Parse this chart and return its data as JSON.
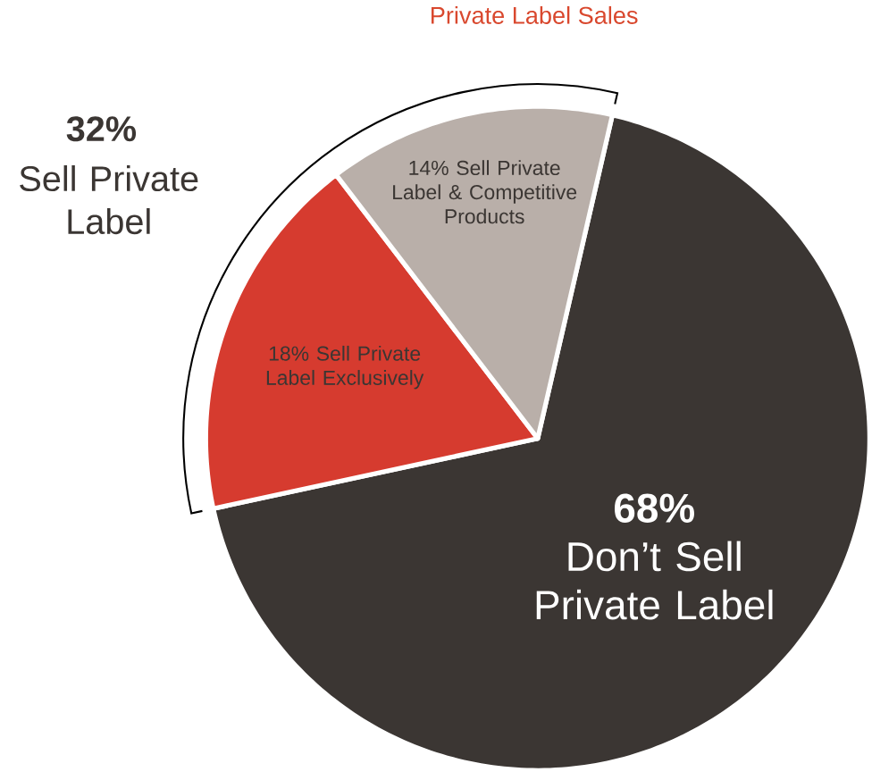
{
  "chart_data": {
    "type": "pie",
    "title": "Private Label Sales",
    "categories": [
      "Don’t Sell Private Label",
      "Sell Private Label Exclusively",
      "Sell Private Label & Competitive Products"
    ],
    "values": [
      68,
      18,
      14
    ],
    "colors": [
      "#3b3633",
      "#d63b2f",
      "#b9afa9"
    ],
    "value_labels": [
      "68%",
      "18%",
      "14%"
    ],
    "annotations": [
      "32%",
      "Sell Private Label"
    ]
  }
}
